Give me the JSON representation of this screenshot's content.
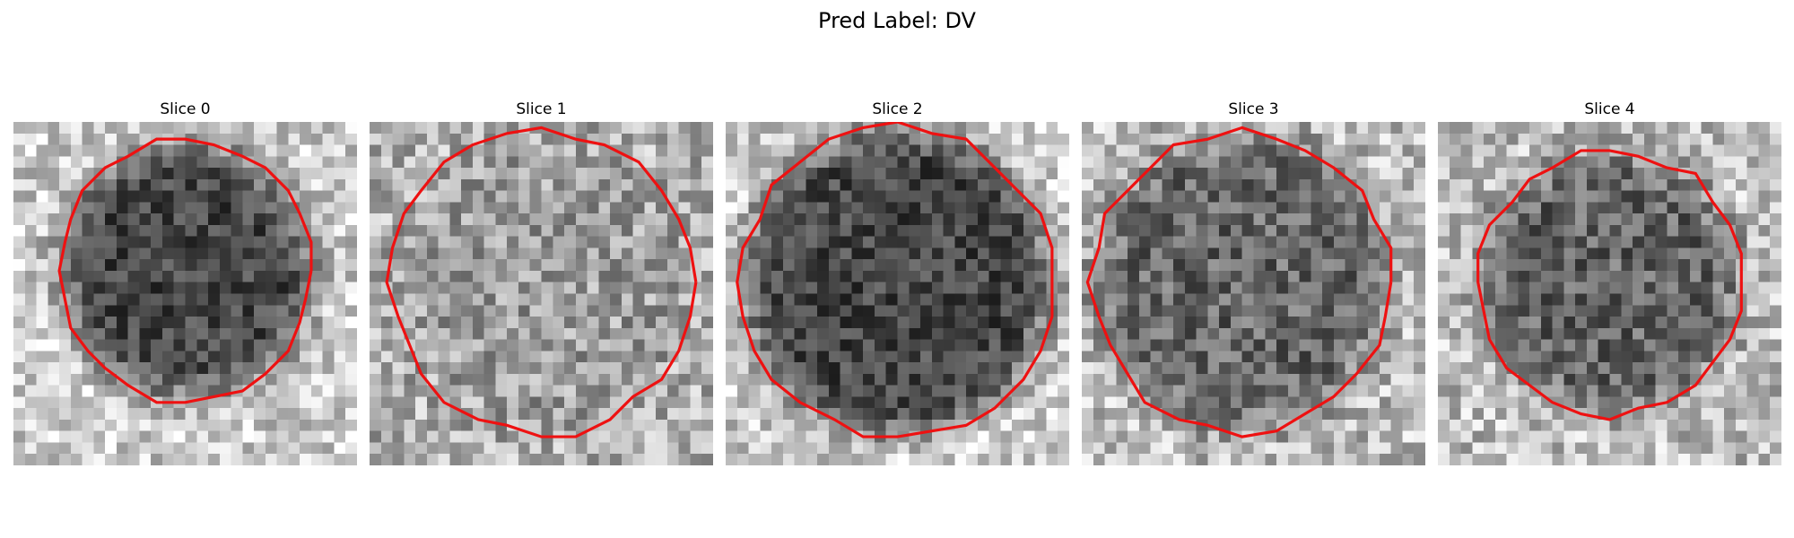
{
  "figure": {
    "title": "Pred Label: DV"
  },
  "panels": [
    {
      "title": "Slice 0",
      "seed": 11,
      "style": "dark",
      "center": [
        15,
        13
      ],
      "radius": 11.2,
      "blob_strength": 1.0
    },
    {
      "title": "Slice 1",
      "seed": 23,
      "style": "light",
      "center": [
        15,
        14
      ],
      "radius": 13.2,
      "blob_strength": 0.55
    },
    {
      "title": "Slice 2",
      "seed": 37,
      "style": "dark",
      "center": [
        15,
        14
      ],
      "radius": 13.6,
      "blob_strength": 1.0
    },
    {
      "title": "Slice 3",
      "seed": 41,
      "style": "medium",
      "center": [
        14,
        14
      ],
      "radius": 13.0,
      "blob_strength": 0.85
    },
    {
      "title": "Slice 4",
      "seed": 53,
      "style": "medium",
      "center": [
        15,
        14
      ],
      "radius": 11.5,
      "blob_strength": 0.9
    }
  ],
  "colors": {
    "contour": "#ee1111"
  }
}
